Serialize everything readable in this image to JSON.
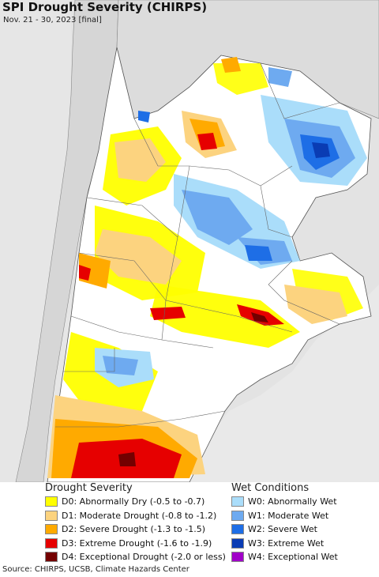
{
  "title": "SPI Drought Severity (CHIRPS)",
  "subtitle": "Nov. 21 - 30, 2023 [final]",
  "legend": {
    "drought": {
      "header": "Drought Severity",
      "items": [
        {
          "label": "D0: Abnormally Dry (-0.5 to -0.7)",
          "color": "#ffff00"
        },
        {
          "label": "D1: Moderate Drought (-0.8 to -1.2)",
          "color": "#fcd37f"
        },
        {
          "label": "D2: Severe Drought (-1.3 to -1.5)",
          "color": "#ffaa00"
        },
        {
          "label": "D3: Extreme Drought (-1.6 to -1.9)",
          "color": "#e60000"
        },
        {
          "label": "D4: Exceptional Drought (-2.0 or less)",
          "color": "#730000"
        }
      ]
    },
    "wet": {
      "header": "Wet Conditions",
      "items": [
        {
          "label": "W0: Abnormally Wet",
          "color": "#aaddfa"
        },
        {
          "label": "W1: Moderate Wet",
          "color": "#6eaaf0"
        },
        {
          "label": "W2: Severe Wet",
          "color": "#1e6ee6"
        },
        {
          "label": "W3: Extreme Wet",
          "color": "#0a3cb4"
        },
        {
          "label": "W4: Exceptional Wet",
          "color": "#a000c8"
        }
      ]
    }
  },
  "source": "Source: CHIRPS, UCSB, Climate Hazards Center"
}
